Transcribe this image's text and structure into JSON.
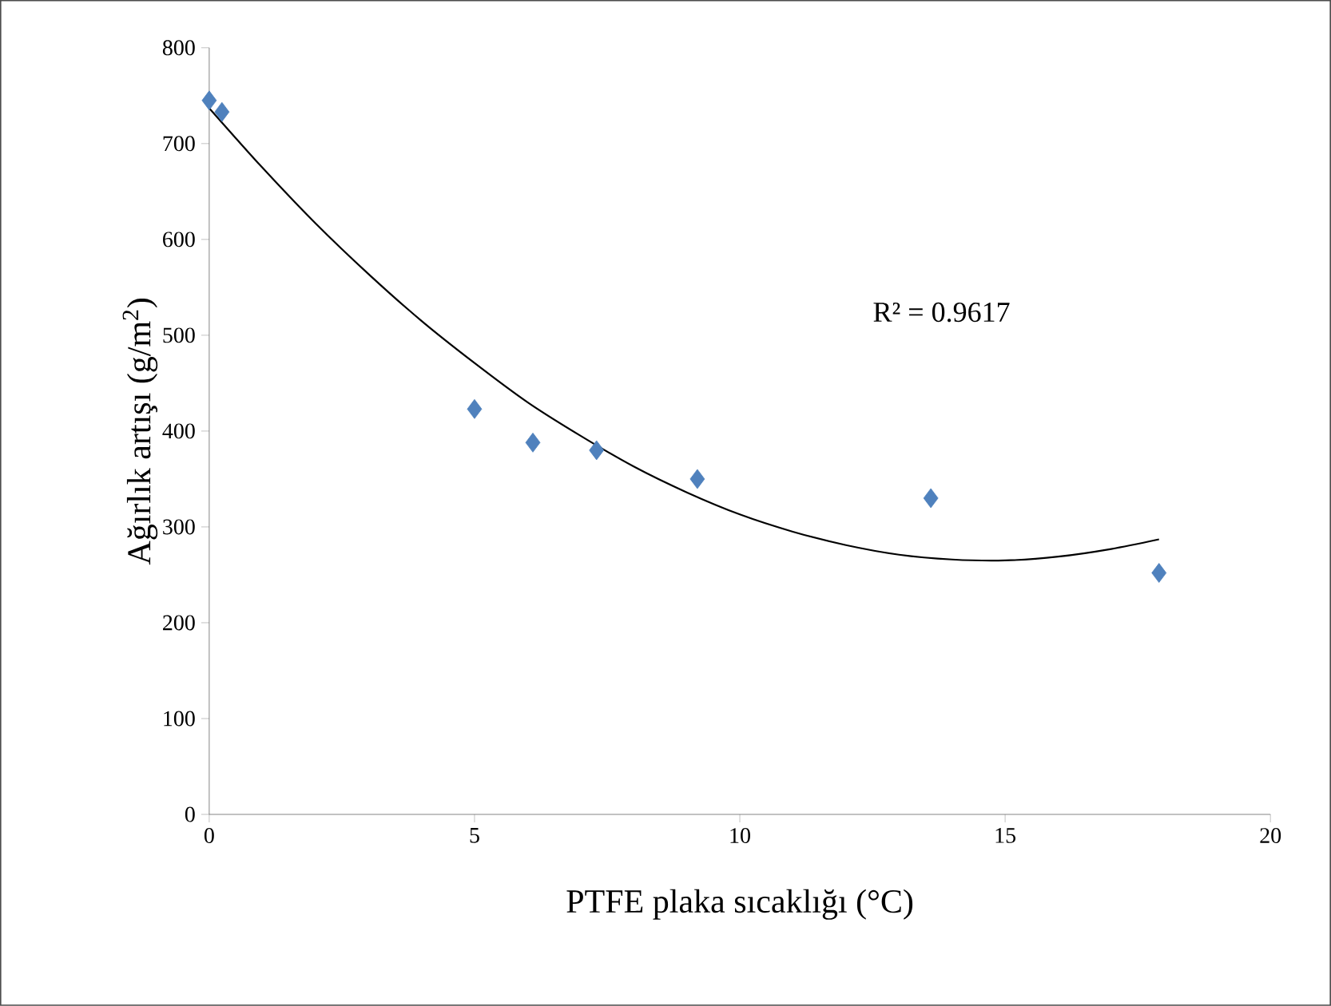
{
  "chart_data": {
    "type": "scatter",
    "xlabel": "PTFE plaka sıcaklığı (°C)",
    "ylabel": "Ağırlık artışı (g/m$^{2}$)",
    "xlim": [
      0,
      20
    ],
    "ylim": [
      0,
      800
    ],
    "xticks": [
      0,
      5,
      10,
      15,
      20
    ],
    "yticks": [
      0,
      100,
      200,
      300,
      400,
      500,
      600,
      700,
      800
    ],
    "grid": false,
    "annotations": [
      "R² = 0.9617"
    ],
    "series": [
      {
        "color": "#4f81bd",
        "marker": "diamond",
        "x": [
          0,
          0.24,
          5.0,
          6.1,
          7.3,
          9.2,
          13.6,
          17.9
        ],
        "values": [
          745,
          733,
          423,
          388,
          380,
          350,
          330,
          252
        ]
      },
      {
        "type": "line",
        "color": "#000000",
        "marker": "none",
        "line_style": "solid",
        "x": [
          0,
          1,
          2,
          3,
          4,
          5,
          6,
          7,
          8,
          9,
          10,
          11,
          12,
          13,
          14,
          15,
          16,
          17,
          17.9
        ],
        "values": [
          737,
          675,
          617,
          564,
          515,
          471,
          430,
          395,
          363,
          336,
          313,
          295,
          281,
          271,
          266,
          265,
          269,
          277,
          287
        ]
      }
    ]
  }
}
